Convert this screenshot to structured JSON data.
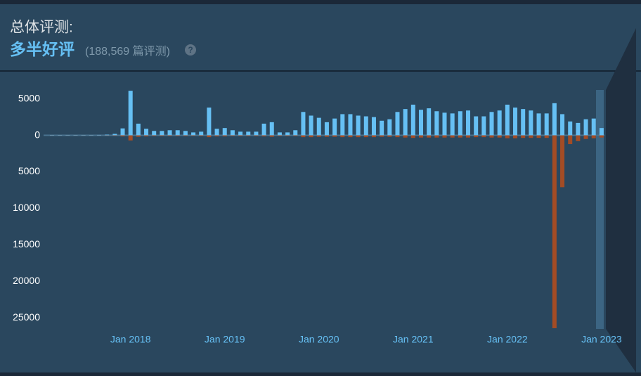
{
  "header": {
    "title": "总体评测:",
    "summary": "多半好评",
    "count": "(188,569 篇评测)",
    "help": "?"
  },
  "chart_data": {
    "type": "bar",
    "categories": [
      null,
      null,
      null,
      null,
      null,
      null,
      null,
      null,
      null,
      null,
      "Jan 2018",
      null,
      null,
      null,
      null,
      null,
      null,
      null,
      null,
      null,
      null,
      null,
      "Jan 2019",
      null,
      null,
      null,
      null,
      null,
      null,
      null,
      null,
      null,
      null,
      null,
      "Jan 2020",
      null,
      null,
      null,
      null,
      null,
      null,
      null,
      null,
      null,
      null,
      null,
      "Jan 2021",
      null,
      null,
      null,
      null,
      null,
      null,
      null,
      null,
      null,
      null,
      null,
      "Jan 2022",
      null,
      null,
      null,
      null,
      null,
      null,
      null,
      null,
      null,
      null,
      null,
      "Jan 2023"
    ],
    "series": [
      {
        "name": "positive",
        "color": "#66c0f4",
        "values": [
          50,
          50,
          50,
          50,
          50,
          50,
          60,
          100,
          200,
          950,
          6100,
          1600,
          900,
          600,
          600,
          700,
          700,
          600,
          400,
          500,
          3800,
          900,
          1000,
          700,
          500,
          500,
          500,
          1600,
          1800,
          400,
          400,
          700,
          3200,
          2700,
          2400,
          1800,
          2300,
          2900,
          2900,
          2700,
          2600,
          2500,
          2000,
          2200,
          3200,
          3600,
          4200,
          3500,
          3700,
          3300,
          3100,
          3000,
          3300,
          3400,
          2600,
          2600,
          3200,
          3400,
          4200,
          3800,
          3600,
          3400,
          3000,
          3000,
          4400,
          2900,
          1900,
          1700,
          2200,
          2300,
          1000
        ]
      },
      {
        "name": "negative",
        "color": "#a34c25",
        "values": [
          -20,
          -20,
          -20,
          -20,
          -20,
          -20,
          -20,
          -30,
          -50,
          -150,
          -700,
          -200,
          -150,
          -100,
          -100,
          -100,
          -100,
          -100,
          -80,
          -100,
          -250,
          -150,
          -150,
          -100,
          -100,
          -100,
          -100,
          -150,
          -200,
          -100,
          -100,
          -100,
          -250,
          -250,
          -200,
          -200,
          -200,
          -250,
          -250,
          -250,
          -250,
          -250,
          -200,
          -200,
          -250,
          -300,
          -350,
          -300,
          -300,
          -300,
          -300,
          -300,
          -300,
          -300,
          -250,
          -250,
          -300,
          -300,
          -400,
          -400,
          -350,
          -350,
          -350,
          -350,
          -26400,
          -7100,
          -1200,
          -800,
          -500,
          -400,
          -300
        ]
      }
    ],
    "ylim": [
      -26500,
      6500
    ],
    "yticks": [
      5000,
      0,
      {
        "value": -5000,
        "label": "5000"
      },
      {
        "value": -10000,
        "label": "10000"
      },
      {
        "value": -15000,
        "label": "15000"
      },
      {
        "value": -20000,
        "label": "20000"
      },
      {
        "value": -25000,
        "label": "25000"
      }
    ]
  }
}
